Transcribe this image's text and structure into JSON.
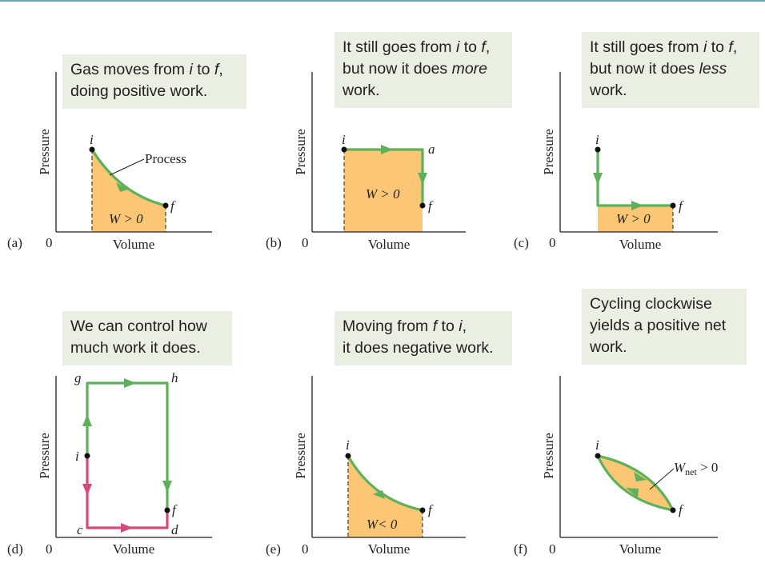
{
  "axes": {
    "ylabel": "Pressure",
    "xlabel": "Volume",
    "origin": "0"
  },
  "panels": [
    {
      "id": "a",
      "label": "(a)",
      "caption": {
        "lines": [
          [
            "Gas moves from ",
            {
              "i": "i"
            },
            " to ",
            {
              "i": "f"
            },
            ","
          ],
          [
            "doing positive work."
          ]
        ]
      },
      "point_labels": {
        "i": "i",
        "f": "f"
      },
      "annotations": {
        "process": "Process",
        "work": "W > 0"
      }
    },
    {
      "id": "b",
      "label": "(b)",
      "caption": {
        "lines": [
          [
            "It still goes from ",
            {
              "i": "i"
            },
            " to ",
            {
              "i": "f"
            },
            ","
          ],
          [
            "but now it does ",
            {
              "i": "more"
            }
          ],
          [
            "work."
          ]
        ]
      },
      "point_labels": {
        "i": "i",
        "a": "a",
        "f": "f"
      },
      "annotations": {
        "work": "W > 0"
      }
    },
    {
      "id": "c",
      "label": "(c)",
      "caption": {
        "lines": [
          [
            "It still goes from ",
            {
              "i": "i"
            },
            " to ",
            {
              "i": "f"
            },
            ","
          ],
          [
            "but now it does ",
            {
              "i": "less"
            }
          ],
          [
            "work."
          ]
        ]
      },
      "point_labels": {
        "i": "i",
        "f": "f"
      },
      "annotations": {
        "work": "W > 0"
      }
    },
    {
      "id": "d",
      "label": "(d)",
      "caption": {
        "lines": [
          [
            "We can control how"
          ],
          [
            "much work it does."
          ]
        ]
      },
      "point_labels": {
        "g": "g",
        "h": "h",
        "i": "i",
        "f": "f",
        "c": "c",
        "d": "d"
      },
      "annotations": {}
    },
    {
      "id": "e",
      "label": "(e)",
      "caption": {
        "lines": [
          [
            "Moving from ",
            {
              "i": "f"
            },
            " to ",
            {
              "i": "i"
            },
            ","
          ],
          [
            "it does negative work."
          ]
        ]
      },
      "point_labels": {
        "i": "i",
        "f": "f"
      },
      "annotations": {
        "work": "W< 0"
      }
    },
    {
      "id": "f",
      "label": "(f)",
      "caption": {
        "lines": [
          [
            "Cycling clockwise"
          ],
          [
            "yields a positive net"
          ],
          [
            "work."
          ]
        ]
      },
      "point_labels": {
        "i": "i",
        "f": "f"
      },
      "annotations": {
        "work_prefix": "W",
        "work_sub": "net",
        "work_suffix": " > 0"
      }
    }
  ],
  "colors": {
    "fill": "#fcc774",
    "process": "#5cb15a",
    "reverse": "#d9487a",
    "caption_bg": "#ebeee2",
    "axis": "#231f20"
  }
}
